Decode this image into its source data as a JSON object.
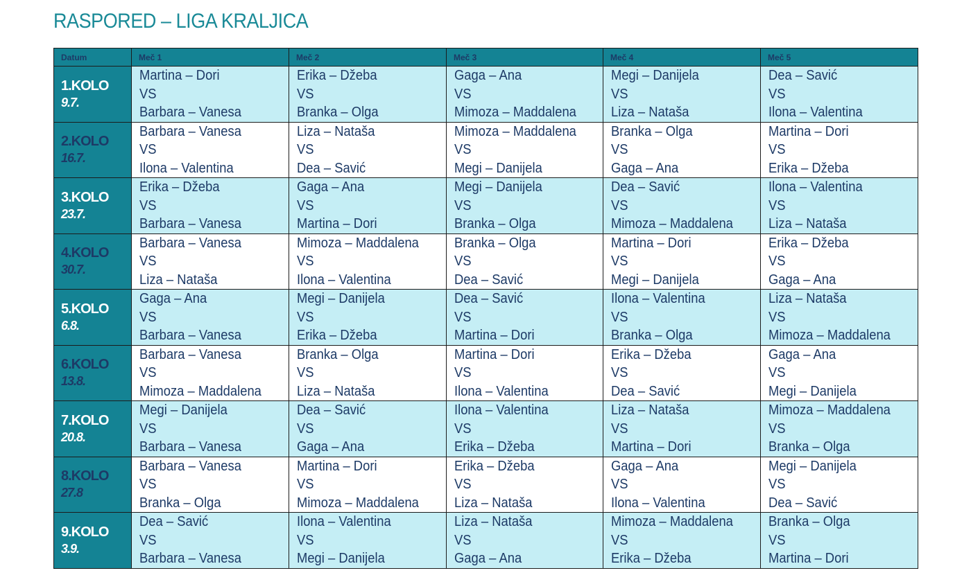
{
  "title": "RASPORED – LIGA KRALJICA",
  "colors": {
    "teal": "#148394",
    "light_row": "#c5eef5",
    "text": "#1d3a66",
    "title": "#1a8a97"
  },
  "headers": [
    "Datum",
    "Meč 1",
    "Meč 2",
    "Meč 3",
    "Meč 4",
    "Meč 5"
  ],
  "vs": "VS",
  "rounds": [
    {
      "kolo": "1.KOLO",
      "date": "9.7.",
      "matches": [
        [
          "Martina – Dori",
          "Barbara – Vanesa"
        ],
        [
          "Erika – Džeba",
          "Branka – Olga"
        ],
        [
          "Gaga – Ana",
          "Mimoza – Maddalena"
        ],
        [
          "Megi – Danijela",
          "Liza – Nataša"
        ],
        [
          "Dea – Savić",
          "Ilona – Valentina"
        ]
      ]
    },
    {
      "kolo": "2.KOLO",
      "date": "16.7.",
      "matches": [
        [
          "Barbara – Vanesa",
          "Ilona – Valentina"
        ],
        [
          "Liza – Nataša",
          "Dea – Savić"
        ],
        [
          "Mimoza – Maddalena",
          "Megi – Danijela"
        ],
        [
          "Branka – Olga",
          "Gaga – Ana"
        ],
        [
          "Martina – Dori",
          "Erika – Džeba"
        ]
      ]
    },
    {
      "kolo": "3.KOLO",
      "date": "23.7.",
      "matches": [
        [
          "Erika – Džeba",
          "Barbara – Vanesa"
        ],
        [
          "Gaga – Ana",
          "Martina – Dori"
        ],
        [
          "Megi – Danijela",
          "Branka – Olga"
        ],
        [
          "Dea – Savić",
          "Mimoza – Maddalena"
        ],
        [
          "Ilona – Valentina",
          "Liza – Nataša"
        ]
      ]
    },
    {
      "kolo": "4.KOLO",
      "date": "30.7.",
      "matches": [
        [
          "Barbara – Vanesa",
          "Liza – Nataša"
        ],
        [
          "Mimoza – Maddalena",
          "Ilona – Valentina"
        ],
        [
          "Branka – Olga",
          "Dea – Savić"
        ],
        [
          "Martina – Dori",
          "Megi – Danijela"
        ],
        [
          "Erika – Džeba",
          "Gaga – Ana"
        ]
      ]
    },
    {
      "kolo": "5.KOLO",
      "date": "6.8.",
      "matches": [
        [
          "Gaga – Ana",
          "Barbara – Vanesa"
        ],
        [
          "Megi – Danijela",
          "Erika – Džeba"
        ],
        [
          "Dea – Savić",
          "Martina – Dori"
        ],
        [
          "Ilona – Valentina",
          "Branka – Olga"
        ],
        [
          "Liza – Nataša",
          "Mimoza – Maddalena"
        ]
      ]
    },
    {
      "kolo": "6.KOLO",
      "date": "13.8.",
      "matches": [
        [
          "Barbara – Vanesa",
          "Mimoza – Maddalena"
        ],
        [
          "Branka – Olga",
          "Liza – Nataša"
        ],
        [
          "Martina – Dori",
          "Ilona – Valentina"
        ],
        [
          "Erika – Džeba",
          "Dea – Savić"
        ],
        [
          "Gaga – Ana",
          "Megi – Danijela"
        ]
      ]
    },
    {
      "kolo": "7.KOLO",
      "date": "20.8.",
      "matches": [
        [
          "Megi – Danijela",
          "Barbara – Vanesa"
        ],
        [
          "Dea – Savić",
          "Gaga – Ana"
        ],
        [
          "Ilona – Valentina",
          "Erika – Džeba"
        ],
        [
          "Liza – Nataša",
          "Martina – Dori"
        ],
        [
          "Mimoza – Maddalena",
          "Branka – Olga"
        ]
      ]
    },
    {
      "kolo": "8.KOLO",
      "date": "27.8",
      "matches": [
        [
          "Barbara – Vanesa",
          "Branka – Olga"
        ],
        [
          "Martina – Dori",
          "Mimoza – Maddalena"
        ],
        [
          "Erika – Džeba",
          "Liza – Nataša"
        ],
        [
          "Gaga – Ana",
          "Ilona – Valentina"
        ],
        [
          "Megi – Danijela",
          "Dea – Savić"
        ]
      ]
    },
    {
      "kolo": "9.KOLO",
      "date": "3.9.",
      "matches": [
        [
          "Dea – Savić",
          "Barbara – Vanesa"
        ],
        [
          "Ilona – Valentina",
          "Megi – Danijela"
        ],
        [
          "Liza – Nataša",
          "Gaga – Ana"
        ],
        [
          "Mimoza – Maddalena",
          "Erika – Džeba"
        ],
        [
          "Branka – Olga",
          "Martina – Dori"
        ]
      ]
    }
  ]
}
